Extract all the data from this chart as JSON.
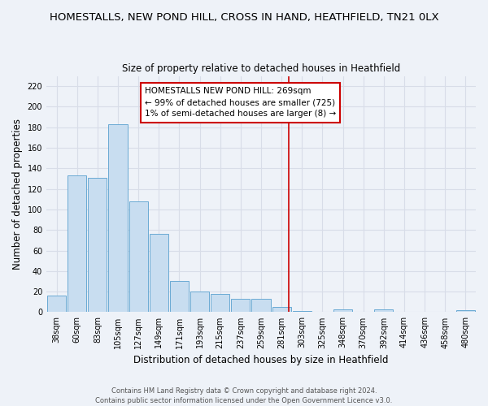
{
  "title": "HOMESTALLS, NEW POND HILL, CROSS IN HAND, HEATHFIELD, TN21 0LX",
  "subtitle": "Size of property relative to detached houses in Heathfield",
  "xlabel": "Distribution of detached houses by size in Heathfield",
  "ylabel": "Number of detached properties",
  "bar_labels": [
    "38sqm",
    "60sqm",
    "83sqm",
    "105sqm",
    "127sqm",
    "149sqm",
    "171sqm",
    "193sqm",
    "215sqm",
    "237sqm",
    "259sqm",
    "281sqm",
    "303sqm",
    "325sqm",
    "348sqm",
    "370sqm",
    "392sqm",
    "414sqm",
    "436sqm",
    "458sqm",
    "480sqm"
  ],
  "bar_values": [
    16,
    133,
    131,
    183,
    108,
    76,
    30,
    20,
    18,
    13,
    13,
    5,
    1,
    0,
    3,
    0,
    3,
    0,
    0,
    0,
    2
  ],
  "bar_color": "#c8ddf0",
  "bar_edge_color": "#6aaad4",
  "ylim": [
    0,
    230
  ],
  "yticks": [
    0,
    20,
    40,
    60,
    80,
    100,
    120,
    140,
    160,
    180,
    200,
    220
  ],
  "vline_pos": 11.35,
  "vline_color": "#cc0000",
  "annotation_title": "HOMESTALLS NEW POND HILL: 269sqm",
  "annotation_line1": "← 99% of detached houses are smaller (725)",
  "annotation_line2": "1% of semi-detached houses are larger (8) →",
  "footer_line1": "Contains HM Land Registry data © Crown copyright and database right 2024.",
  "footer_line2": "Contains public sector information licensed under the Open Government Licence v3.0.",
  "background_color": "#eef2f8",
  "grid_color": "#d8dde8",
  "title_fontsize": 9.5,
  "subtitle_fontsize": 8.5,
  "axis_label_fontsize": 8.5,
  "tick_fontsize": 7,
  "footer_fontsize": 6,
  "ann_fontsize": 7.5
}
